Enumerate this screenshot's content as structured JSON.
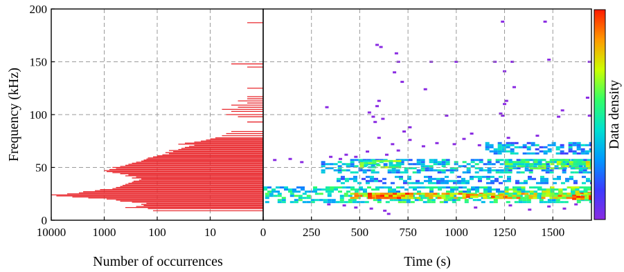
{
  "chart_data": [
    {
      "type": "bar",
      "orientation": "horizontal",
      "xlabel": "Number of occurrences",
      "ylabel": "Frequency (kHz)",
      "x_scale": "log",
      "x_reversed": true,
      "x_ticks": [
        {
          "value": 10000,
          "label": "10000"
        },
        {
          "value": 1000,
          "label": "1000"
        },
        {
          "value": 100,
          "label": "100"
        },
        {
          "value": 10,
          "label": "10"
        },
        {
          "value": 0,
          "label": "0"
        }
      ],
      "y_ticks": [
        "0",
        "50",
        "100",
        "150",
        "200"
      ],
      "ylim": [
        0,
        200
      ],
      "grid": true,
      "bar_color": "#e8262b",
      "frequency_kHz": [
        9,
        11,
        12,
        13,
        14,
        15,
        16,
        17,
        18,
        19,
        20,
        21,
        22,
        23,
        24,
        25,
        26,
        27,
        28,
        29,
        30,
        31,
        32,
        33,
        34,
        35,
        36,
        37,
        38,
        39,
        40,
        41,
        42,
        43,
        44,
        45,
        46,
        47,
        48,
        49,
        50,
        51,
        52,
        53,
        54,
        55,
        56,
        57,
        58,
        59,
        60,
        61,
        62,
        63,
        64,
        65,
        66,
        67,
        68,
        69,
        70,
        71,
        72,
        73,
        74,
        75,
        76,
        77,
        78,
        80,
        82,
        84,
        93,
        98,
        100,
        103,
        105,
        107,
        109,
        111,
        113,
        115,
        117,
        125,
        145,
        148,
        187
      ],
      "occurrences": [
        120,
        150,
        400,
        250,
        180,
        200,
        160,
        300,
        500,
        600,
        900,
        2000,
        4000,
        8000,
        10000,
        5000,
        3000,
        2500,
        1500,
        1200,
        700,
        600,
        500,
        450,
        400,
        350,
        300,
        280,
        220,
        200,
        300,
        250,
        400,
        350,
        500,
        700,
        900,
        1000,
        800,
        600,
        700,
        500,
        400,
        350,
        300,
        250,
        200,
        180,
        160,
        150,
        120,
        100,
        80,
        60,
        70,
        50,
        60,
        40,
        35,
        30,
        25,
        20,
        40,
        30,
        20,
        15,
        12,
        10,
        8,
        6,
        5,
        4,
        2,
        3,
        5,
        4,
        6,
        3,
        4,
        2,
        3,
        2,
        2,
        2,
        2,
        4,
        2
      ]
    },
    {
      "type": "heatmap",
      "xlabel": "Time (s)",
      "ylabel": "Frequency (kHz)",
      "x_ticks": [
        "0",
        "250",
        "500",
        "750",
        "1000",
        "1250",
        "1500"
      ],
      "xlim": [
        0,
        1700
      ],
      "ylim": [
        0,
        200
      ],
      "grid": true,
      "colorbar_label": "Data density",
      "colormap": [
        "#8a2be2",
        "#3b3bff",
        "#0099ff",
        "#00e0d0",
        "#33ff66",
        "#ccff00",
        "#ff9900",
        "#ff1a00"
      ],
      "clusters": [
        {
          "t": [
            10,
            1700
          ],
          "f": [
            18,
            26
          ],
          "density": 0.45
        },
        {
          "t": [
            450,
            1700
          ],
          "f": [
            21,
            26
          ],
          "density": 0.75
        },
        {
          "t": [
            520,
            760
          ],
          "f": [
            21,
            26
          ],
          "density": 0.85
        },
        {
          "t": [
            1050,
            1250
          ],
          "f": [
            22,
            25
          ],
          "density": 0.8
        },
        {
          "t": [
            1600,
            1700
          ],
          "f": [
            20,
            27
          ],
          "density": 0.9
        },
        {
          "t": [
            0,
            1700
          ],
          "f": [
            27,
            32
          ],
          "density": 0.4
        },
        {
          "t": [
            1250,
            1700
          ],
          "f": [
            26,
            32
          ],
          "density": 0.6
        },
        {
          "t": [
            380,
            1700
          ],
          "f": [
            36,
            42
          ],
          "density": 0.3
        },
        {
          "t": [
            300,
            1700
          ],
          "f": [
            45,
            58
          ],
          "density": 0.35
        },
        {
          "t": [
            500,
            700
          ],
          "f": [
            50,
            57
          ],
          "density": 0.55
        },
        {
          "t": [
            1250,
            1700
          ],
          "f": [
            50,
            58
          ],
          "density": 0.5
        },
        {
          "t": [
            1520,
            1700
          ],
          "f": [
            52,
            58
          ],
          "density": 0.65
        },
        {
          "t": [
            1150,
            1700
          ],
          "f": [
            64,
            74
          ],
          "density": 0.3
        }
      ],
      "outliers": [
        [
          590,
          166
        ],
        [
          610,
          164
        ],
        [
          690,
          158
        ],
        [
          700,
          150
        ],
        [
          680,
          140
        ],
        [
          720,
          131
        ],
        [
          840,
          124
        ],
        [
          870,
          150
        ],
        [
          1000,
          150
        ],
        [
          1200,
          150
        ],
        [
          1240,
          188
        ],
        [
          1250,
          141
        ],
        [
          1290,
          150
        ],
        [
          1300,
          126
        ],
        [
          1460,
          188
        ],
        [
          1480,
          152
        ],
        [
          1690,
          150
        ],
        [
          1680,
          116
        ],
        [
          1250,
          110
        ],
        [
          1260,
          113
        ],
        [
          1240,
          99
        ],
        [
          1230,
          101
        ],
        [
          1550,
          104
        ],
        [
          1530,
          98
        ],
        [
          950,
          99
        ],
        [
          1690,
          99
        ],
        [
          330,
          107
        ],
        [
          600,
          113
        ],
        [
          590,
          108
        ],
        [
          550,
          102
        ],
        [
          570,
          98
        ],
        [
          620,
          96
        ],
        [
          580,
          93
        ],
        [
          760,
          88
        ],
        [
          730,
          84
        ],
        [
          1080,
          82
        ],
        [
          1270,
          78
        ],
        [
          1420,
          80
        ],
        [
          670,
          72
        ],
        [
          760,
          76
        ],
        [
          830,
          70
        ],
        [
          900,
          73
        ],
        [
          990,
          72
        ],
        [
          1040,
          77
        ],
        [
          1120,
          71
        ],
        [
          540,
          65
        ],
        [
          600,
          78
        ],
        [
          640,
          62
        ],
        [
          700,
          66
        ],
        [
          480,
          60
        ],
        [
          430,
          62
        ],
        [
          400,
          58
        ],
        [
          350,
          60
        ],
        [
          200,
          55
        ],
        [
          140,
          58
        ],
        [
          60,
          57
        ],
        [
          340,
          15
        ],
        [
          420,
          14
        ],
        [
          480,
          12
        ],
        [
          560,
          11
        ],
        [
          630,
          9
        ],
        [
          650,
          6
        ],
        [
          1100,
          12
        ],
        [
          1280,
          14
        ],
        [
          1380,
          10
        ],
        [
          1480,
          13
        ],
        [
          1560,
          11
        ],
        [
          1620,
          15
        ]
      ]
    }
  ]
}
